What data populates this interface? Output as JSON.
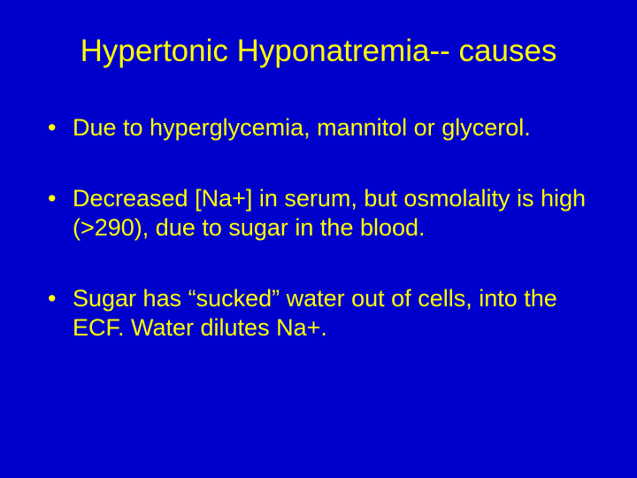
{
  "slide": {
    "background_color": "#0000cc",
    "text_color": "#ffff00",
    "title": "Hypertonic Hyponatremia-- causes",
    "title_fontsize": 35,
    "bullet_fontsize": 27,
    "bullets": [
      "Due to hyperglycemia, mannitol or glycerol.",
      "Decreased [Na+] in serum, but osmolality is high (>290), due to sugar in the blood.",
      "Sugar has “sucked” water out of cells, into the ECF. Water dilutes Na+."
    ]
  }
}
